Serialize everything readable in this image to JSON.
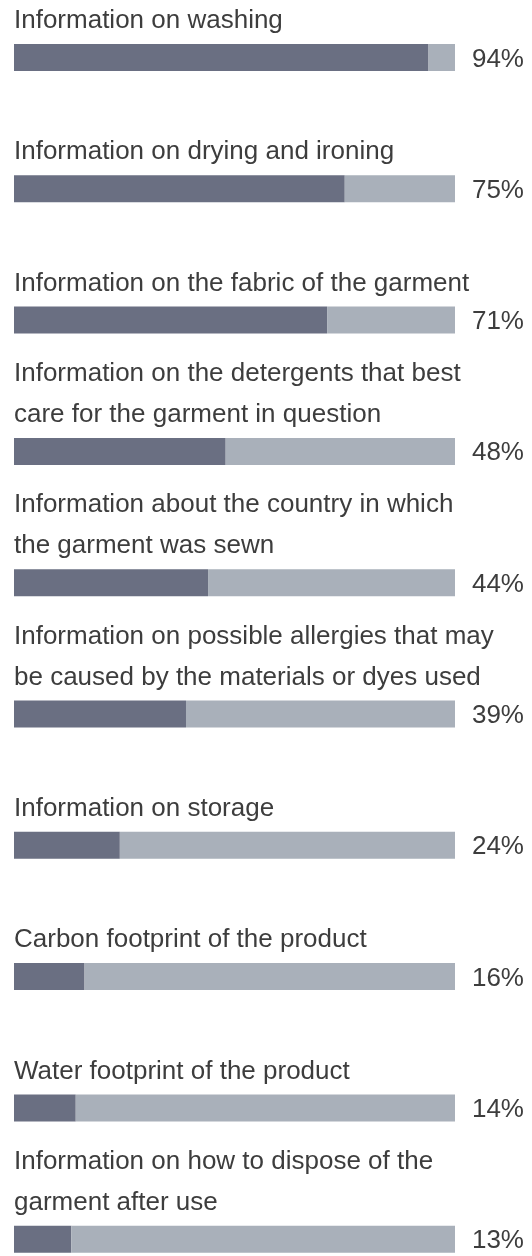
{
  "chart_data": {
    "type": "bar",
    "orientation": "horizontal",
    "stacked": true,
    "tick_labels": "y",
    "xlim": [
      0,
      100
    ],
    "categories": [
      "Information on washing",
      "Information on drying and ironing",
      "Information on the fabric of the garment",
      "Information on the detergents that best care for the garment in question",
      "Information about the country in which the garment was sewn",
      "Information on possible allergies that may be caused by the materials or dyes used",
      "Information on storage",
      "Carbon footprint of the product",
      "Water footprint of the product",
      "Information on how to dispose of the garment after use"
    ],
    "series": [
      {
        "color": "#6a6f82",
        "values": [
          94,
          75,
          71,
          48,
          44,
          39,
          24,
          16,
          14,
          13
        ],
        "value_labels": [
          "94%",
          "75%",
          "71%",
          "48%",
          "44%",
          "39%",
          "24%",
          "16%",
          "14%",
          "13%"
        ]
      },
      {
        "color": "#a9b0ba",
        "values": [
          6,
          25,
          29,
          52,
          56,
          61,
          76,
          84,
          86,
          87
        ]
      }
    ]
  }
}
